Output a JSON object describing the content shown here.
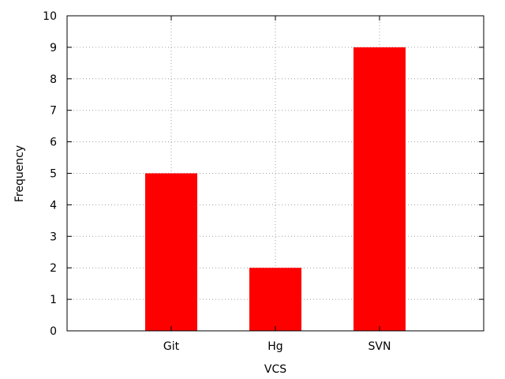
{
  "chart_data": {
    "type": "bar",
    "categories": [
      "Git",
      "Hg",
      "SVN"
    ],
    "values": [
      5,
      2,
      9
    ],
    "title": "",
    "xlabel": "VCS",
    "ylabel": "Frequency",
    "ylim": [
      0,
      10
    ],
    "yticks": [
      "0",
      "1",
      "2",
      "3",
      "4",
      "5",
      "6",
      "7",
      "8",
      "9",
      "10"
    ],
    "grid": true,
    "bar_color": "#ff0000",
    "grid_color": "#a0a0a0"
  }
}
